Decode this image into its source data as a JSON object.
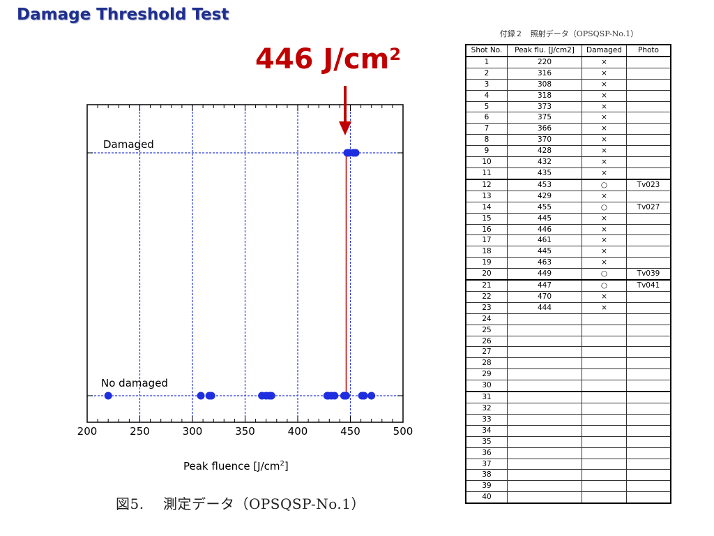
{
  "slide": {
    "title": "Damage Threshold Test",
    "threshold_value": "446 J/cm",
    "threshold_sup": "2"
  },
  "chart_data": {
    "type": "scatter",
    "xlabel": "Peak fluence [J/cm²]",
    "xlabel_main": "Peak fluence [J/cm",
    "xlabel_sup": "2",
    "ylabel": "",
    "xlim": [
      200,
      500
    ],
    "x_ticks": [
      200,
      250,
      300,
      350,
      400,
      450,
      500
    ],
    "categories": [
      "No damaged",
      "Damaged"
    ],
    "grid": true,
    "threshold_line_x": 446,
    "series": [
      {
        "name": "Damaged",
        "level": "Damaged",
        "x": [
          447,
          449,
          453,
          455
        ]
      },
      {
        "name": "No damaged",
        "level": "No damaged",
        "x": [
          220,
          308,
          316,
          318,
          366,
          370,
          373,
          375,
          428,
          429,
          432,
          435,
          444,
          445,
          445,
          446,
          461,
          463,
          470
        ]
      }
    ],
    "caption": "図5.　 測定データ（OPSQSP-No.1）",
    "colors": {
      "marker": "#1f2fdf",
      "grid": "#2a3adf",
      "threshold": "#c00000"
    }
  },
  "table": {
    "caption": "付録２　照射データ（OPSQSP-No.1）",
    "headers": [
      "Shot No.",
      "Peak flu. [J/cm2]",
      "Damaged",
      "Photo"
    ],
    "rows": [
      [
        "1",
        "220",
        "×",
        ""
      ],
      [
        "2",
        "316",
        "×",
        ""
      ],
      [
        "3",
        "308",
        "×",
        ""
      ],
      [
        "4",
        "318",
        "×",
        ""
      ],
      [
        "5",
        "373",
        "×",
        ""
      ],
      [
        "6",
        "375",
        "×",
        ""
      ],
      [
        "7",
        "366",
        "×",
        ""
      ],
      [
        "8",
        "370",
        "×",
        ""
      ],
      [
        "9",
        "428",
        "×",
        ""
      ],
      [
        "10",
        "432",
        "×",
        ""
      ],
      [
        "11",
        "435",
        "×",
        ""
      ],
      [
        "12",
        "453",
        "○",
        "Tv023"
      ],
      [
        "13",
        "429",
        "×",
        ""
      ],
      [
        "14",
        "455",
        "○",
        "Tv027"
      ],
      [
        "15",
        "445",
        "×",
        ""
      ],
      [
        "16",
        "446",
        "×",
        ""
      ],
      [
        "17",
        "461",
        "×",
        ""
      ],
      [
        "18",
        "445",
        "×",
        ""
      ],
      [
        "19",
        "463",
        "×",
        ""
      ],
      [
        "20",
        "449",
        "○",
        "Tv039"
      ],
      [
        "21",
        "447",
        "○",
        "Tv041"
      ],
      [
        "22",
        "470",
        "×",
        ""
      ],
      [
        "23",
        "444",
        "×",
        ""
      ],
      [
        "24",
        "",
        "",
        ""
      ],
      [
        "25",
        "",
        "",
        ""
      ],
      [
        "26",
        "",
        "",
        ""
      ],
      [
        "27",
        "",
        "",
        ""
      ],
      [
        "28",
        "",
        "",
        ""
      ],
      [
        "29",
        "",
        "",
        ""
      ],
      [
        "30",
        "",
        "",
        ""
      ],
      [
        "31",
        "",
        "",
        ""
      ],
      [
        "32",
        "",
        "",
        ""
      ],
      [
        "33",
        "",
        "",
        ""
      ],
      [
        "34",
        "",
        "",
        ""
      ],
      [
        "35",
        "",
        "",
        ""
      ],
      [
        "36",
        "",
        "",
        ""
      ],
      [
        "37",
        "",
        "",
        ""
      ],
      [
        "38",
        "",
        "",
        ""
      ],
      [
        "39",
        "",
        "",
        ""
      ],
      [
        "40",
        "",
        "",
        ""
      ]
    ]
  }
}
